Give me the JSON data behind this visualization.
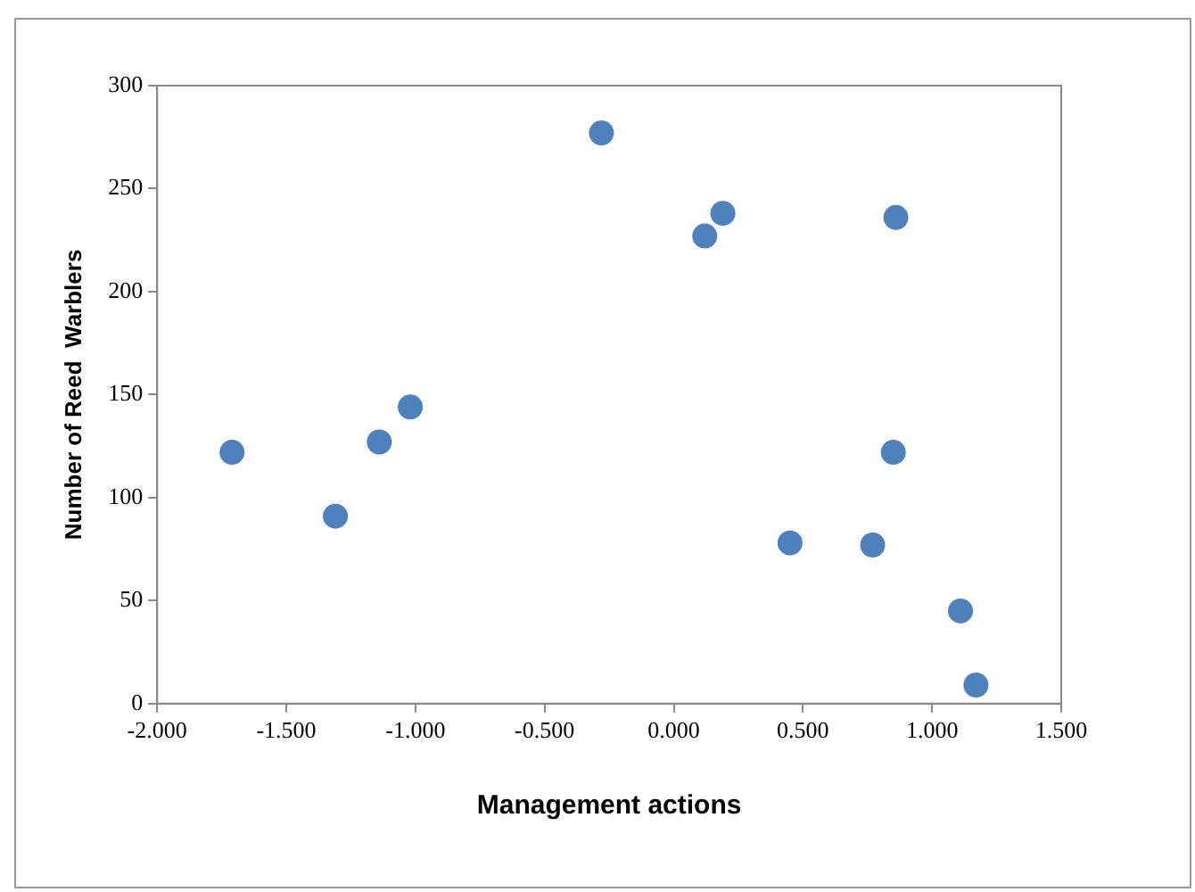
{
  "chart_data": {
    "type": "scatter",
    "xlabel": "Management actions",
    "ylabel": "Number of Reed  Warblers",
    "x": [
      -1.71,
      -1.31,
      -1.14,
      -1.02,
      -0.28,
      0.12,
      0.19,
      0.86,
      0.85,
      0.45,
      0.77,
      1.11,
      1.17
    ],
    "series": [
      {
        "color": "#4f81bd",
        "values": [
          122,
          91,
          127,
          144,
          277,
          227,
          238,
          236,
          122,
          78,
          77,
          45,
          9
        ]
      }
    ],
    "xlim": [
      -2,
      1.5
    ],
    "xticks": [
      {
        "value": -2,
        "label": "-2.000"
      },
      {
        "value": -1.5,
        "label": "-1.500"
      },
      {
        "value": -1,
        "label": "-1.000"
      },
      {
        "value": -0.5,
        "label": "-0.500"
      },
      {
        "value": 0,
        "label": "0.000"
      },
      {
        "value": 0.5,
        "label": "0.500"
      },
      {
        "value": 1,
        "label": "1.000"
      },
      {
        "value": 1.5,
        "label": "1.500"
      }
    ],
    "ylim": [
      0,
      300
    ],
    "yticks": [
      0,
      50,
      100,
      150,
      200,
      250,
      300
    ],
    "grid": false,
    "legend": false,
    "marker": "circle"
  }
}
